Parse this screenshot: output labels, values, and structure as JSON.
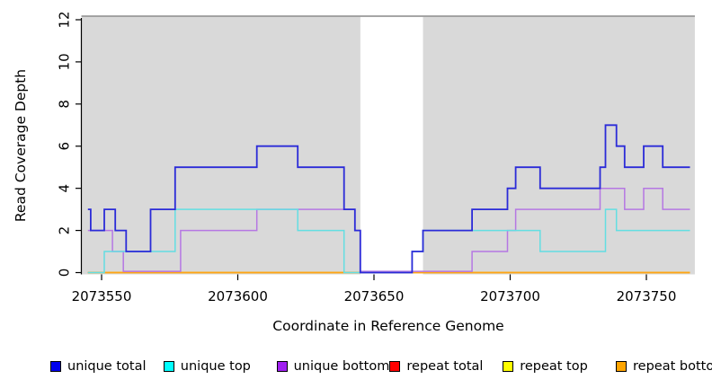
{
  "chart_data": {
    "type": "line",
    "title": "",
    "xlabel": "Coordinate in Reference Genome",
    "ylabel": "Read Coverage Depth",
    "xlim": [
      2073542.7,
      2073767.8
    ],
    "ylim": [
      0,
      12
    ],
    "x_ticks": [
      2073550,
      2073600,
      2073650,
      2073700,
      2073750
    ],
    "y_ticks": [
      0,
      2,
      4,
      6,
      8,
      10,
      12
    ],
    "grid": false,
    "legend_position": "bottom",
    "step_mode": "post",
    "data_start": 2073545,
    "data_end": 2073766,
    "background_bands": {
      "color": "#d9d9d9",
      "frame_top_color": "#999999",
      "regions": [
        [
          2073542.7,
          2073645
        ],
        [
          2073668,
          2073767.8
        ]
      ]
    },
    "series": [
      {
        "name": "unique total",
        "line_color": "#2b2bd8",
        "swatch_color": "#0000ee",
        "width": 1.8,
        "zero_offset": 0,
        "points": [
          [
            2073545,
            3
          ],
          [
            2073546,
            2
          ],
          [
            2073551,
            3
          ],
          [
            2073555,
            2
          ],
          [
            2073559,
            1
          ],
          [
            2073568,
            3
          ],
          [
            2073577,
            5
          ],
          [
            2073607,
            6
          ],
          [
            2073622,
            5
          ],
          [
            2073639,
            3
          ],
          [
            2073643,
            2
          ],
          [
            2073645,
            0
          ],
          [
            2073664,
            1
          ],
          [
            2073668,
            2
          ],
          [
            2073686,
            3
          ],
          [
            2073699,
            4
          ],
          [
            2073702,
            5
          ],
          [
            2073711,
            4
          ],
          [
            2073733,
            5
          ],
          [
            2073735,
            7
          ],
          [
            2073739,
            6
          ],
          [
            2073742,
            5
          ],
          [
            2073749,
            6
          ],
          [
            2073756,
            5
          ]
        ]
      },
      {
        "name": "unique top",
        "line_color": "#63dee2",
        "swatch_color": "#00ffff",
        "width": 1.5,
        "zero_offset": 0,
        "points": [
          [
            2073545,
            0
          ],
          [
            2073551,
            1
          ],
          [
            2073577,
            3
          ],
          [
            2073622,
            2
          ],
          [
            2073639,
            0
          ],
          [
            2073664,
            1
          ],
          [
            2073668,
            2
          ],
          [
            2073711,
            1
          ],
          [
            2073735,
            3
          ],
          [
            2073739,
            2
          ]
        ]
      },
      {
        "name": "unique bottom",
        "line_color": "#b577e3",
        "swatch_color": "#a020f0",
        "width": 1.5,
        "zero_offset": -1.4,
        "points": [
          [
            2073545,
            2
          ],
          [
            2073554,
            1
          ],
          [
            2073558,
            0
          ],
          [
            2073579,
            2
          ],
          [
            2073607,
            3
          ],
          [
            2073643,
            2
          ],
          [
            2073645,
            0
          ],
          [
            2073686,
            1
          ],
          [
            2073699,
            2
          ],
          [
            2073702,
            3
          ],
          [
            2073733,
            4
          ],
          [
            2073742,
            3
          ],
          [
            2073749,
            4
          ],
          [
            2073756,
            3
          ]
        ]
      },
      {
        "name": "repeat total",
        "line_color": "#ee0000",
        "swatch_color": "#ff0000",
        "width": 1.5,
        "zero_offset": 0,
        "points": [
          [
            2073545,
            0
          ]
        ]
      },
      {
        "name": "repeat top",
        "line_color": "#ffff00",
        "swatch_color": "#ffff00",
        "width": 1.5,
        "zero_offset": 0,
        "points": [
          [
            2073545,
            0
          ]
        ]
      },
      {
        "name": "repeat bottom",
        "line_color": "#ffa414",
        "swatch_color": "#ffa500",
        "width": 1.6,
        "zero_offset": 0,
        "points": [
          [
            2073545,
            0
          ]
        ]
      }
    ],
    "draw_order": [
      3,
      4,
      5,
      2,
      1,
      0
    ]
  }
}
